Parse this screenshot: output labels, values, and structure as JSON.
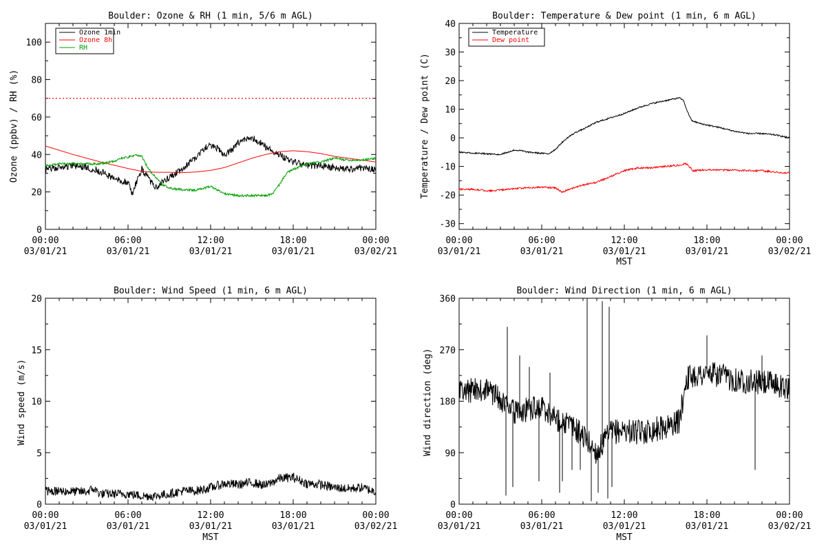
{
  "chart_data": [
    {
      "type": "line",
      "title": "Boulder: Ozone & RH (1 min, 5/6 m AGL)",
      "ylabel": "Ozone (ppbv) / RH (%)",
      "xlabel": "",
      "ylim": [
        0,
        110
      ],
      "yticks": [
        0,
        20,
        40,
        60,
        80,
        100
      ],
      "xlim": [
        0,
        24
      ],
      "xtick_hours": [
        0,
        6,
        12,
        18,
        24
      ],
      "xtick_top": [
        "00:00",
        "06:00",
        "12:00",
        "18:00",
        "00:00"
      ],
      "xtick_bottom": [
        "03/01/21",
        "03/01/21",
        "03/01/21",
        "03/01/21",
        "03/02/21"
      ],
      "legend_position": "top-left",
      "hline": {
        "value": 70,
        "color": "#ff0000",
        "style": "dotted"
      },
      "series": [
        {
          "name": "Ozone 1min",
          "color": "#000000",
          "noise": 1.8,
          "seed": 1,
          "points": [
            [
              0,
              32
            ],
            [
              1,
              33
            ],
            [
              2,
              34
            ],
            [
              3,
              33
            ],
            [
              4,
              31
            ],
            [
              5,
              27
            ],
            [
              6,
              25
            ],
            [
              6.3,
              19
            ],
            [
              6.7,
              27
            ],
            [
              7,
              32
            ],
            [
              7.5,
              27
            ],
            [
              8,
              22
            ],
            [
              8.5,
              25
            ],
            [
              9,
              28
            ],
            [
              10,
              32
            ],
            [
              10.5,
              36
            ],
            [
              11,
              39
            ],
            [
              11.5,
              43
            ],
            [
              12,
              45
            ],
            [
              12.5,
              43
            ],
            [
              13,
              40
            ],
            [
              13.5,
              42
            ],
            [
              14,
              46
            ],
            [
              14.5,
              48
            ],
            [
              15,
              49
            ],
            [
              15.5,
              47
            ],
            [
              16,
              44
            ],
            [
              16.5,
              42
            ],
            [
              17,
              40
            ],
            [
              17.5,
              38
            ],
            [
              18,
              36
            ],
            [
              18.5,
              35
            ],
            [
              19,
              34
            ],
            [
              20,
              34
            ],
            [
              21,
              33
            ],
            [
              22,
              32
            ],
            [
              23,
              33
            ],
            [
              24,
              32
            ]
          ]
        },
        {
          "name": "Ozone 8h",
          "color": "#ff0000",
          "noise": 0,
          "seed": 2,
          "points": [
            [
              0,
              44.5
            ],
            [
              2,
              40
            ],
            [
              4,
              36
            ],
            [
              6,
              32.5
            ],
            [
              7,
              31
            ],
            [
              8,
              30.5
            ],
            [
              9,
              30.5
            ],
            [
              10,
              30.3
            ],
            [
              11,
              30.7
            ],
            [
              12,
              31.5
            ],
            [
              13,
              33
            ],
            [
              14,
              35.5
            ],
            [
              15,
              38
            ],
            [
              16,
              40
            ],
            [
              17,
              41.5
            ],
            [
              18,
              42
            ],
            [
              19,
              41.5
            ],
            [
              20,
              40.5
            ],
            [
              21,
              39
            ],
            [
              22,
              38
            ],
            [
              23,
              37
            ],
            [
              24,
              36
            ]
          ]
        },
        {
          "name": "RH",
          "color": "#00a000",
          "noise": 0.6,
          "seed": 3,
          "points": [
            [
              0,
              34
            ],
            [
              1,
              35
            ],
            [
              2,
              35
            ],
            [
              3,
              35
            ],
            [
              4,
              35
            ],
            [
              5,
              36.5
            ],
            [
              5.5,
              38
            ],
            [
              6,
              38.5
            ],
            [
              6.5,
              39.5
            ],
            [
              7,
              39
            ],
            [
              7.5,
              32
            ],
            [
              8,
              28
            ],
            [
              8.5,
              24
            ],
            [
              9,
              22
            ],
            [
              10,
              21
            ],
            [
              11,
              21
            ],
            [
              12,
              23
            ],
            [
              12.5,
              21
            ],
            [
              13,
              19
            ],
            [
              14,
              18
            ],
            [
              15,
              18
            ],
            [
              16,
              18
            ],
            [
              16.5,
              19
            ],
            [
              17,
              24
            ],
            [
              17.5,
              30
            ],
            [
              18,
              32
            ],
            [
              19,
              35
            ],
            [
              20,
              36
            ],
            [
              21,
              38
            ],
            [
              22,
              37
            ],
            [
              23,
              37
            ],
            [
              24,
              38
            ]
          ]
        }
      ]
    },
    {
      "type": "line",
      "title": "Boulder: Temperature & Dew point (1 min, 6 m AGL)",
      "ylabel": "Temperature / Dew point (C)",
      "xlabel": "MST",
      "ylim": [
        -32,
        40
      ],
      "yticks": [
        -30,
        -20,
        -10,
        0,
        10,
        20,
        30,
        40
      ],
      "xlim": [
        0,
        24
      ],
      "xtick_hours": [
        0,
        6,
        12,
        18,
        24
      ],
      "xtick_top": [
        "00:00",
        "06:00",
        "12:00",
        "18:00",
        "00:00"
      ],
      "xtick_bottom": [
        "03/01/21",
        "03/01/21",
        "03/01/21",
        "03/01/21",
        "03/02/21"
      ],
      "legend_position": "top-left",
      "series": [
        {
          "name": "Temperature",
          "color": "#000000",
          "noise": 0.25,
          "seed": 4,
          "points": [
            [
              0,
              -5
            ],
            [
              1,
              -5.3
            ],
            [
              2,
              -5.6
            ],
            [
              3,
              -5.8
            ],
            [
              4,
              -4.3
            ],
            [
              4.5,
              -4.5
            ],
            [
              5,
              -5
            ],
            [
              6,
              -5.4
            ],
            [
              6.5,
              -5.6
            ],
            [
              7,
              -4
            ],
            [
              7.5,
              -1.5
            ],
            [
              8,
              0.5
            ],
            [
              8.5,
              2
            ],
            [
              9,
              3
            ],
            [
              10,
              5.5
            ],
            [
              11,
              7
            ],
            [
              12,
              8.5
            ],
            [
              13,
              10.5
            ],
            [
              14,
              12
            ],
            [
              15,
              13
            ],
            [
              16,
              14
            ],
            [
              16.3,
              13
            ],
            [
              16.6,
              9
            ],
            [
              16.9,
              6
            ],
            [
              17.5,
              5
            ],
            [
              18,
              4.5
            ],
            [
              19,
              3.5
            ],
            [
              20,
              2.3
            ],
            [
              21,
              1.5
            ],
            [
              22,
              1.5
            ],
            [
              23,
              1
            ],
            [
              24,
              0
            ]
          ]
        },
        {
          "name": "Dew point",
          "color": "#ff0000",
          "noise": 0.3,
          "seed": 5,
          "points": [
            [
              0,
              -18
            ],
            [
              1,
              -18
            ],
            [
              2,
              -18.5
            ],
            [
              3,
              -18.3
            ],
            [
              4,
              -17.7
            ],
            [
              5,
              -17.5
            ],
            [
              6,
              -17.3
            ],
            [
              7,
              -17.5
            ],
            [
              7.5,
              -19
            ],
            [
              8,
              -18
            ],
            [
              9,
              -16.5
            ],
            [
              10,
              -15.5
            ],
            [
              11,
              -13.5
            ],
            [
              12,
              -11.5
            ],
            [
              13,
              -10.5
            ],
            [
              14,
              -10.5
            ],
            [
              15,
              -10
            ],
            [
              16,
              -9.5
            ],
            [
              16.5,
              -9
            ],
            [
              17,
              -11.5
            ],
            [
              18,
              -11.2
            ],
            [
              19,
              -11.3
            ],
            [
              20,
              -11.3
            ],
            [
              21,
              -11.5
            ],
            [
              22,
              -11.5
            ],
            [
              23,
              -12
            ],
            [
              24,
              -12.3
            ]
          ]
        }
      ]
    },
    {
      "type": "line",
      "title": "Boulder: Wind Speed (1 min, 6 m AGL)",
      "ylabel": "Wind speed (m/s)",
      "xlabel": "MST",
      "ylim": [
        0,
        20
      ],
      "yticks": [
        0,
        5,
        10,
        15,
        20
      ],
      "xlim": [
        0,
        24
      ],
      "xtick_hours": [
        0,
        6,
        12,
        18,
        24
      ],
      "xtick_top": [
        "00:00",
        "06:00",
        "12:00",
        "18:00",
        "00:00"
      ],
      "xtick_bottom": [
        "03/01/21",
        "03/01/21",
        "03/01/21",
        "03/01/21",
        "03/02/21"
      ],
      "series": [
        {
          "name": "",
          "color": "#000000",
          "noise": 0.45,
          "seed": 6,
          "points": [
            [
              0,
              1.3
            ],
            [
              3,
              1.2
            ],
            [
              3.5,
              1.5
            ],
            [
              4,
              1.0
            ],
            [
              6,
              1.0
            ],
            [
              7,
              0.8
            ],
            [
              8,
              0.8
            ],
            [
              9,
              1.0
            ],
            [
              10,
              1.3
            ],
            [
              11,
              1.3
            ],
            [
              12,
              1.6
            ],
            [
              13,
              2.0
            ],
            [
              14,
              1.9
            ],
            [
              15,
              2.1
            ],
            [
              16,
              1.8
            ],
            [
              17,
              2.5
            ],
            [
              18,
              2.6
            ],
            [
              19,
              2.0
            ],
            [
              20,
              1.9
            ],
            [
              21,
              1.6
            ],
            [
              22,
              1.5
            ],
            [
              23,
              1.6
            ],
            [
              24,
              1.2
            ]
          ]
        }
      ]
    },
    {
      "type": "line",
      "title": "Boulder: Wind Direction (1 min, 6 m AGL)",
      "ylabel": "Wind direction (deg)",
      "xlabel": "MST",
      "ylim": [
        0,
        360
      ],
      "yticks": [
        0,
        90,
        180,
        270,
        360
      ],
      "xlim": [
        0,
        24
      ],
      "xtick_hours": [
        0,
        6,
        12,
        18,
        24
      ],
      "xtick_top": [
        "00:00",
        "06:00",
        "12:00",
        "18:00",
        "00:00"
      ],
      "xtick_bottom": [
        "03/01/21",
        "03/01/21",
        "03/01/21",
        "03/01/21",
        "03/02/21"
      ],
      "series": [
        {
          "name": "",
          "color": "#000000",
          "noise": 22,
          "seed": 7,
          "points": [
            [
              0,
              195
            ],
            [
              1,
              200
            ],
            [
              2,
              200
            ],
            [
              3,
              185
            ],
            [
              3.5,
              170
            ],
            [
              4,
              160
            ],
            [
              5,
              165
            ],
            [
              6,
              170
            ],
            [
              7,
              150
            ],
            [
              8,
              140
            ],
            [
              9,
              120
            ],
            [
              10,
              90
            ],
            [
              11,
              125
            ],
            [
              12,
              130
            ],
            [
              13,
              125
            ],
            [
              14,
              130
            ],
            [
              15,
              135
            ],
            [
              16,
              145
            ],
            [
              16.5,
              220
            ],
            [
              17,
              225
            ],
            [
              18,
              228
            ],
            [
              19,
              225
            ],
            [
              20,
              218
            ],
            [
              21,
              215
            ],
            [
              22,
              212
            ],
            [
              23,
              210
            ],
            [
              24,
              200
            ]
          ]
        },
        {
          "name": "",
          "color": "#000000",
          "noise": 0,
          "seed": 8,
          "spikes": true,
          "points": [
            [
              3.4,
              15
            ],
            [
              3.5,
              310
            ],
            [
              3.9,
              30
            ],
            [
              4.4,
              260
            ],
            [
              5.1,
              240
            ],
            [
              5.8,
              40
            ],
            [
              6.6,
              230
            ],
            [
              7.3,
              20
            ],
            [
              7.5,
              40
            ],
            [
              8.2,
              60
            ],
            [
              8.8,
              60
            ],
            [
              9.3,
              360
            ],
            [
              9.6,
              5
            ],
            [
              10.1,
              20
            ],
            [
              10.4,
              355
            ],
            [
              10.8,
              10
            ],
            [
              10.9,
              345
            ],
            [
              11.1,
              30
            ],
            [
              18,
              295
            ],
            [
              21.5,
              60
            ],
            [
              22,
              260
            ]
          ]
        }
      ]
    }
  ]
}
